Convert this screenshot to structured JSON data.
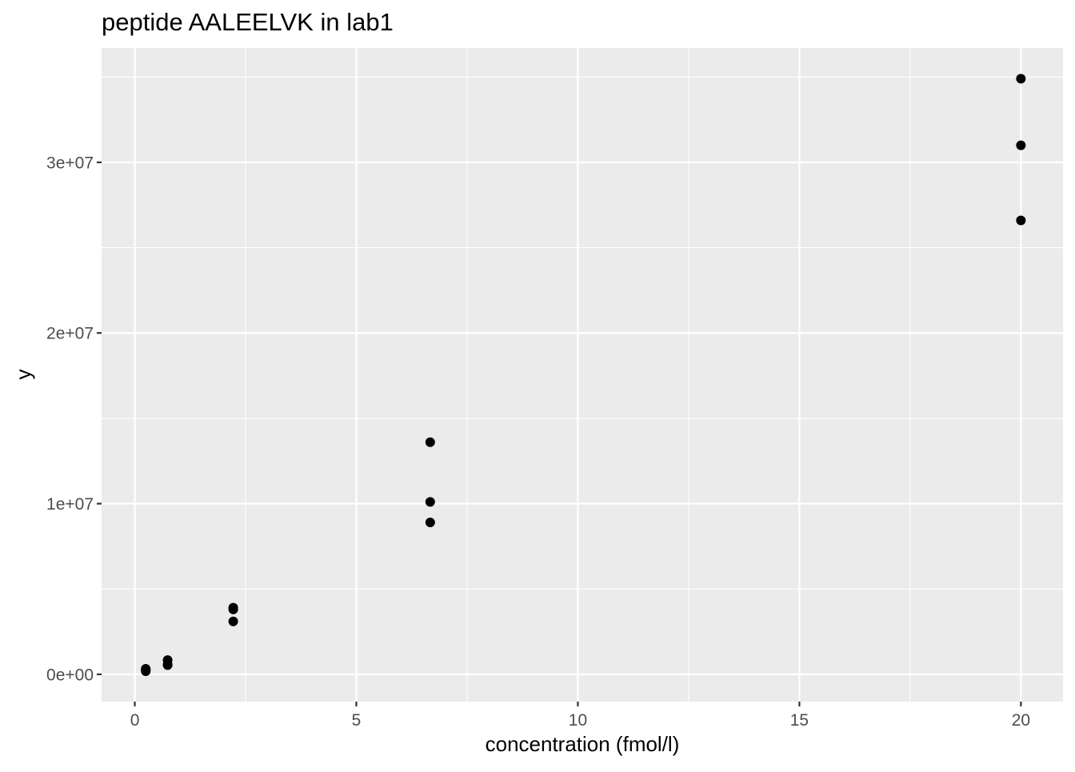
{
  "chart_data": {
    "type": "scatter",
    "title": "peptide AALEELVK in lab1",
    "xlabel": "concentration (fmol/l)",
    "ylabel": "y",
    "xlim": [
      -0.75,
      20.95
    ],
    "ylim": [
      -1600000,
      36700000
    ],
    "x_ticks": [
      0,
      5,
      10,
      15,
      20
    ],
    "x_tick_labels": [
      "0",
      "5",
      "10",
      "15",
      "20"
    ],
    "y_ticks": [
      0,
      10000000,
      20000000,
      30000000
    ],
    "y_tick_labels": [
      "0e+00",
      "1e+07",
      "2e+07",
      "3e+07"
    ],
    "x_minor_ticks": [
      2.5,
      7.5,
      12.5,
      17.5
    ],
    "y_minor_ticks": [
      5000000,
      15000000,
      25000000,
      35000000
    ],
    "grid": true,
    "background_color": "#ebebeb",
    "grid_color": "#ffffff",
    "point_color": "#000000",
    "points": [
      {
        "x": 0.247,
        "y": 250000
      },
      {
        "x": 0.247,
        "y": 180000
      },
      {
        "x": 0.247,
        "y": 320000
      },
      {
        "x": 0.741,
        "y": 830000
      },
      {
        "x": 0.741,
        "y": 580000
      },
      {
        "x": 0.741,
        "y": 540000
      },
      {
        "x": 2.222,
        "y": 3900000
      },
      {
        "x": 2.222,
        "y": 3800000
      },
      {
        "x": 2.222,
        "y": 3100000
      },
      {
        "x": 6.667,
        "y": 13600000
      },
      {
        "x": 6.667,
        "y": 10100000
      },
      {
        "x": 6.667,
        "y": 8900000
      },
      {
        "x": 20.0,
        "y": 34900000
      },
      {
        "x": 20.0,
        "y": 31000000
      },
      {
        "x": 20.0,
        "y": 26600000
      }
    ]
  }
}
